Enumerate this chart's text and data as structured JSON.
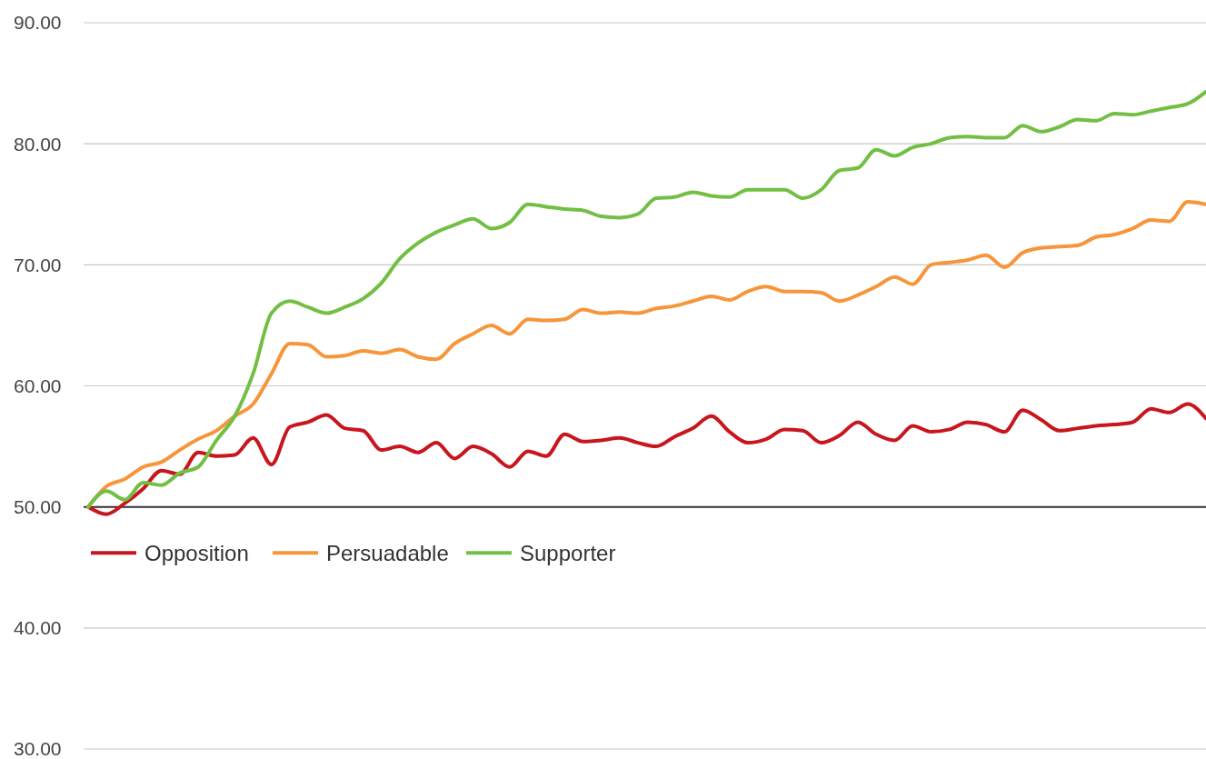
{
  "chart_data": {
    "type": "line",
    "categories": [
      null,
      null,
      null,
      null,
      null,
      null,
      null,
      null,
      null,
      null,
      null,
      null,
      null,
      null,
      null,
      null,
      null,
      null,
      null,
      null,
      null,
      null,
      null,
      null,
      null,
      null,
      null,
      null,
      null,
      null,
      null,
      null,
      null,
      null,
      null,
      null,
      null,
      null,
      null,
      null,
      null,
      null,
      null,
      null,
      null,
      null,
      null,
      null,
      null,
      null,
      null,
      null,
      null,
      null,
      null,
      null,
      null,
      null,
      null,
      null,
      null,
      null
    ],
    "series": [
      {
        "name": "Opposition",
        "color": "#c8161e",
        "values": [
          50,
          49.4,
          50.3,
          51.5,
          53.0,
          52.7,
          54.5,
          54.2,
          54.3,
          55.7,
          53.5,
          56.6,
          57.0,
          57.6,
          56.5,
          56.3,
          54.7,
          55.0,
          54.5,
          55.3,
          54.0,
          55.0,
          54.4,
          53.3,
          54.6,
          54.2,
          56.0,
          55.4,
          55.5,
          55.7,
          55.3,
          55.0,
          55.8,
          56.5,
          57.5,
          56.2,
          55.3,
          55.6,
          56.4,
          56.3,
          55.3,
          55.9,
          57.0,
          56.0,
          55.5,
          56.7,
          56.2,
          56.4,
          57.0,
          56.8,
          56.2,
          58.0,
          57.2,
          56.3,
          56.5,
          56.7,
          56.8,
          57.0,
          58.1,
          57.8,
          58.5,
          57.3
        ]
      },
      {
        "name": "Persuadable",
        "color": "#f7953a",
        "values": [
          50,
          51.7,
          52.3,
          53.3,
          53.7,
          54.7,
          55.6,
          56.3,
          57.5,
          58.5,
          61.0,
          63.5,
          63.4,
          62.4,
          62.5,
          62.9,
          62.7,
          63.0,
          62.4,
          62.2,
          63.5,
          64.3,
          65.0,
          64.3,
          65.5,
          65.4,
          65.5,
          66.3,
          66.0,
          66.1,
          66.0,
          66.4,
          66.6,
          67.0,
          67.4,
          67.1,
          67.8,
          68.2,
          67.8,
          67.8,
          67.7,
          67.0,
          67.5,
          68.2,
          69.0,
          68.4,
          70.0,
          70.2,
          70.4,
          70.8,
          69.8,
          71.0,
          71.4,
          71.5,
          71.6,
          72.3,
          72.5,
          73.0,
          73.7,
          73.6,
          75.2,
          75.0
        ]
      },
      {
        "name": "Supporter",
        "color": "#72bf44",
        "values": [
          50,
          51.3,
          50.6,
          52.0,
          51.8,
          52.8,
          53.3,
          55.5,
          57.5,
          61.0,
          66.0,
          67.0,
          66.5,
          66.0,
          66.5,
          67.2,
          68.5,
          70.5,
          71.8,
          72.7,
          73.3,
          73.8,
          73.0,
          73.5,
          75.0,
          74.8,
          74.6,
          74.5,
          74.0,
          73.9,
          74.2,
          75.5,
          75.6,
          76.0,
          75.7,
          75.6,
          76.2,
          76.2,
          76.2,
          75.5,
          76.2,
          77.8,
          78.0,
          79.5,
          79.0,
          79.7,
          80.0,
          80.5,
          80.6,
          80.5,
          80.5,
          81.5,
          81.0,
          81.4,
          82.0,
          81.9,
          82.5,
          82.4,
          82.7,
          83.0,
          83.3,
          84.3
        ]
      }
    ],
    "ylim": [
      30,
      90
    ],
    "yticks": [
      {
        "value": 30,
        "label": "30.00"
      },
      {
        "value": 40,
        "label": "40.00"
      },
      {
        "value": 50,
        "label": "50.00"
      },
      {
        "value": 60,
        "label": "60.00"
      },
      {
        "value": 70,
        "label": "70.00"
      },
      {
        "value": 80,
        "label": "80.00"
      },
      {
        "value": 90,
        "label": "90.00"
      }
    ],
    "grid": "y",
    "ref_lines": [
      {
        "axis": "y",
        "value": 50,
        "color": "#333333"
      }
    ],
    "legend": "left",
    "line_style": "solid",
    "marker": "none"
  }
}
